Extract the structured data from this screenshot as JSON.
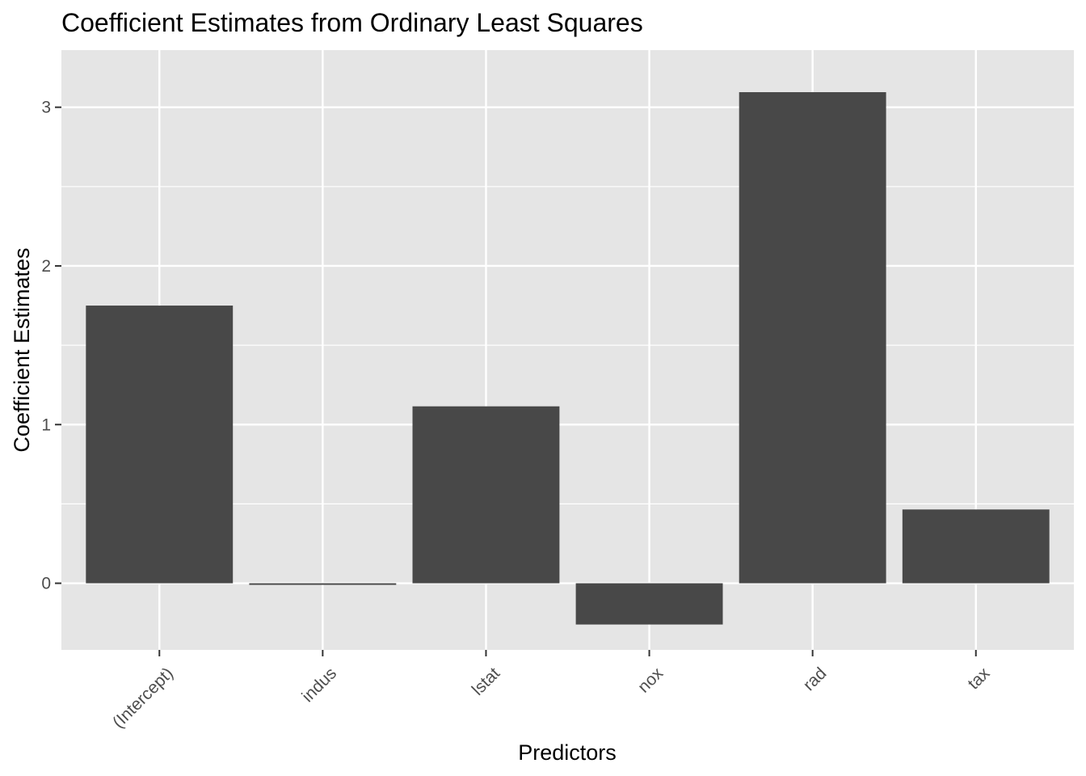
{
  "chart_data": {
    "type": "bar",
    "title": "Coefficient Estimates from Ordinary Least Squares",
    "xlabel": "Predictors",
    "ylabel": "Coefficient Estimates",
    "categories": [
      "(Intercept)",
      "indus",
      "lstat",
      "nox",
      "rad",
      "tax"
    ],
    "values": [
      1.75,
      -0.01,
      1.115,
      -0.26,
      3.095,
      0.465
    ],
    "ylim": [
      -0.42,
      3.36
    ],
    "yticks": [
      0,
      1,
      2,
      3
    ],
    "grid": true,
    "legend": "none",
    "colors": {
      "bar": "#484848",
      "panel": "#e5e5e5",
      "grid": "#ffffff",
      "tick": "#333333"
    }
  }
}
